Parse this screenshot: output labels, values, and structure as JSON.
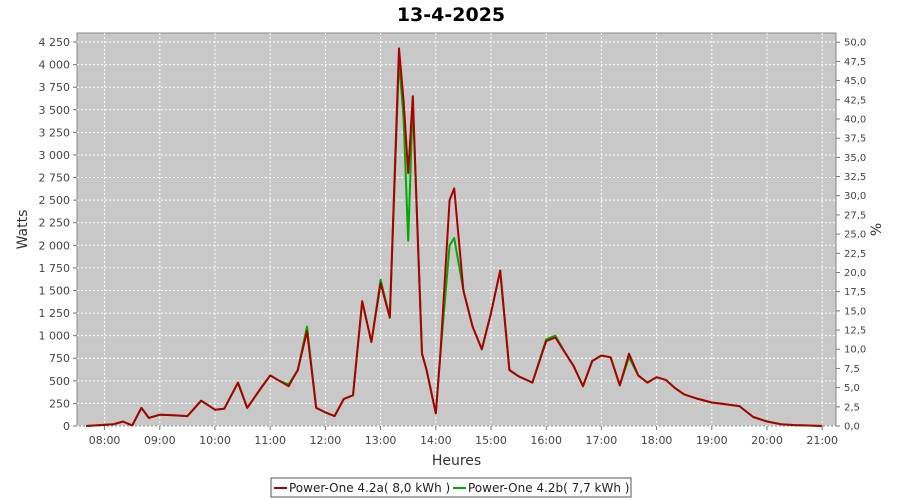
{
  "chart_data": {
    "type": "line",
    "title": "13-4-2025",
    "xlabel": "Heures",
    "ylabel": "Watts",
    "y2label": "%",
    "xlim": [
      "07:30",
      "21:15"
    ],
    "ylim": [
      0,
      4350
    ],
    "y2lim": [
      0,
      51.2
    ],
    "x_ticks": [
      "08:00",
      "09:00",
      "10:00",
      "11:00",
      "12:00",
      "13:00",
      "14:00",
      "15:00",
      "16:00",
      "17:00",
      "18:00",
      "19:00",
      "20:00",
      "21:00"
    ],
    "y_ticks": [
      "0",
      "250",
      "500",
      "750",
      "1 000",
      "1 250",
      "1 500",
      "1 750",
      "2 000",
      "2 250",
      "2 500",
      "2 750",
      "3 000",
      "3 250",
      "3 500",
      "3 750",
      "4 000",
      "4 250"
    ],
    "y2_ticks": [
      "0,0",
      "2,5",
      "5,0",
      "7,5",
      "10,0",
      "12,5",
      "15,0",
      "17,5",
      "20,0",
      "22,5",
      "25,0",
      "27,5",
      "30,0",
      "32,5",
      "35,0",
      "37,5",
      "40,0",
      "42,5",
      "45,0",
      "47,5",
      "50,0"
    ],
    "grid": true,
    "legend_position": "bottom",
    "colors": {
      "plot_bg": "#c8c8c8",
      "grid": "#ffffff"
    },
    "series": [
      {
        "name": "Power-One 4.2a( 8,0 kWh )",
        "color": "#aa0000",
        "x": [
          "07:40",
          "07:55",
          "08:10",
          "08:20",
          "08:30",
          "08:40",
          "08:48",
          "09:00",
          "09:15",
          "09:30",
          "09:45",
          "10:00",
          "10:10",
          "10:25",
          "10:35",
          "10:50",
          "11:00",
          "11:10",
          "11:20",
          "11:30",
          "11:40",
          "11:50",
          "12:00",
          "12:10",
          "12:20",
          "12:30",
          "12:40",
          "12:50",
          "13:00",
          "13:10",
          "13:20",
          "13:25",
          "13:30",
          "13:35",
          "13:40",
          "13:45",
          "13:50",
          "14:00",
          "14:05",
          "14:15",
          "14:20",
          "14:30",
          "14:40",
          "14:50",
          "15:00",
          "15:10",
          "15:20",
          "15:30",
          "15:45",
          "16:00",
          "16:10",
          "16:20",
          "16:30",
          "16:40",
          "16:50",
          "17:00",
          "17:10",
          "17:20",
          "17:30",
          "17:40",
          "17:50",
          "18:00",
          "18:10",
          "18:20",
          "18:30",
          "18:45",
          "19:00",
          "19:15",
          "19:30",
          "19:45",
          "20:00",
          "20:15",
          "20:30",
          "20:45",
          "21:00"
        ],
        "y": [
          0,
          10,
          20,
          50,
          5,
          200,
          90,
          125,
          120,
          110,
          280,
          180,
          190,
          480,
          200,
          420,
          560,
          500,
          440,
          620,
          1050,
          200,
          150,
          110,
          300,
          340,
          1380,
          930,
          1580,
          1200,
          4180,
          3600,
          2800,
          3650,
          2200,
          800,
          620,
          140,
          800,
          2500,
          2630,
          1500,
          1100,
          850,
          1250,
          1720,
          620,
          550,
          480,
          940,
          980,
          820,
          660,
          440,
          720,
          780,
          760,
          450,
          800,
          560,
          480,
          540,
          510,
          420,
          350,
          300,
          260,
          240,
          220,
          100,
          50,
          20,
          10,
          5,
          0
        ]
      },
      {
        "name": "Power-One 4.2b( 7,7 kWh )",
        "color": "#00aa00",
        "x": [
          "07:40",
          "07:55",
          "08:10",
          "08:20",
          "08:30",
          "08:40",
          "08:48",
          "09:00",
          "09:15",
          "09:30",
          "09:45",
          "10:00",
          "10:10",
          "10:25",
          "10:35",
          "10:50",
          "11:00",
          "11:10",
          "11:20",
          "11:30",
          "11:40",
          "11:50",
          "12:00",
          "12:10",
          "12:20",
          "12:30",
          "12:40",
          "12:50",
          "13:00",
          "13:10",
          "13:20",
          "13:25",
          "13:30",
          "13:35",
          "13:40",
          "13:45",
          "13:50",
          "14:00",
          "14:05",
          "14:15",
          "14:20",
          "14:30",
          "14:40",
          "14:50",
          "15:00",
          "15:10",
          "15:20",
          "15:30",
          "15:45",
          "16:00",
          "16:10",
          "16:20",
          "16:30",
          "16:40",
          "16:50",
          "17:00",
          "17:10",
          "17:20",
          "17:30",
          "17:40",
          "17:50",
          "18:00",
          "18:10",
          "18:20",
          "18:30",
          "18:45",
          "19:00",
          "19:15",
          "19:30",
          "19:45",
          "20:00",
          "20:15",
          "20:30",
          "20:45",
          "21:00"
        ],
        "y": [
          0,
          10,
          20,
          50,
          5,
          200,
          90,
          125,
          120,
          110,
          280,
          180,
          190,
          480,
          200,
          420,
          560,
          500,
          460,
          620,
          1100,
          200,
          150,
          110,
          300,
          340,
          1380,
          930,
          1620,
          1200,
          4050,
          3400,
          2050,
          3600,
          2200,
          800,
          620,
          140,
          800,
          2000,
          2080,
          1500,
          1100,
          850,
          1250,
          1720,
          620,
          550,
          480,
          960,
          1000,
          820,
          660,
          440,
          720,
          780,
          760,
          450,
          760,
          560,
          480,
          540,
          510,
          420,
          350,
          300,
          260,
          240,
          220,
          100,
          50,
          20,
          10,
          5,
          0
        ]
      }
    ]
  }
}
